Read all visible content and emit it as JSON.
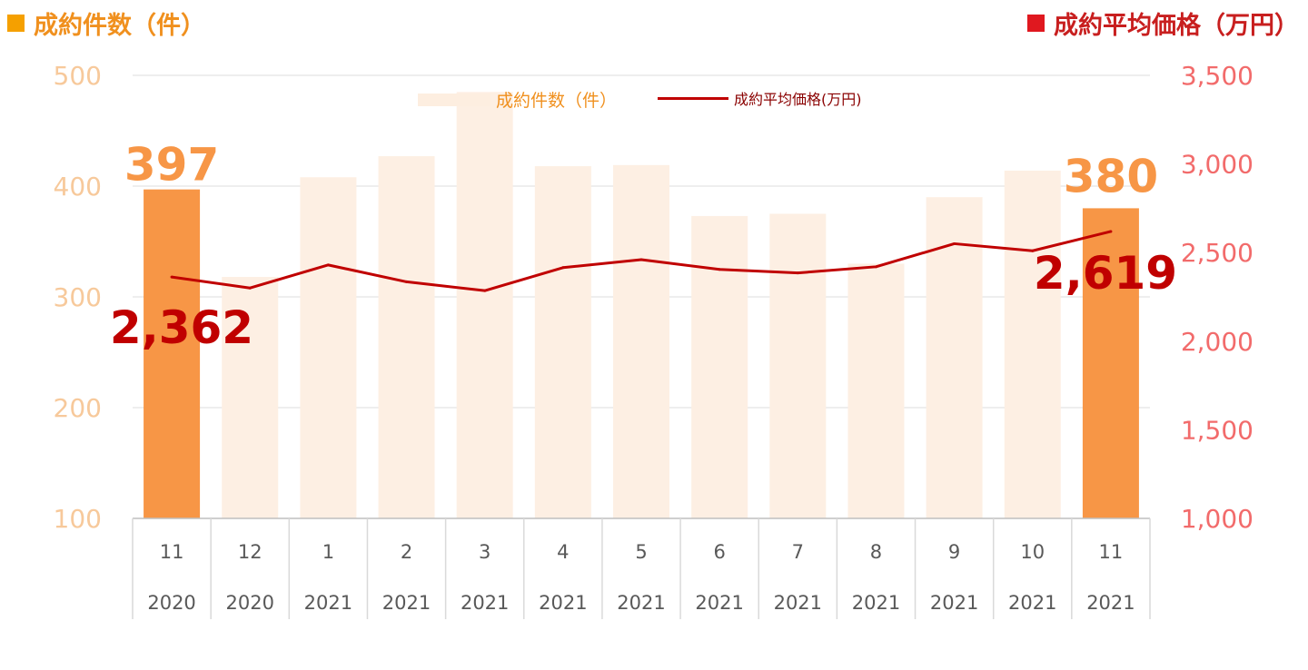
{
  "titles": {
    "left": "成約件数（件）",
    "right": "成約平均価格（万円）"
  },
  "legend": {
    "bar": "成約件数（件）",
    "line": "成約平均価格(万円)"
  },
  "colors": {
    "bar_highlight": "#f79646",
    "bar_faded": "#fdefe3",
    "line": "#c00000",
    "left_axis_text": "#f7c99b",
    "right_axis_text": "#f26b6b",
    "count_label": "#f79646",
    "price_label": "#c00000",
    "grid": "#dcdcdc"
  },
  "chart_data": {
    "type": "bar+line",
    "categories": [
      [
        "11",
        "2020"
      ],
      [
        "12",
        "2020"
      ],
      [
        "1",
        "2021"
      ],
      [
        "2",
        "2021"
      ],
      [
        "3",
        "2021"
      ],
      [
        "4",
        "2021"
      ],
      [
        "5",
        "2021"
      ],
      [
        "6",
        "2021"
      ],
      [
        "7",
        "2021"
      ],
      [
        "8",
        "2021"
      ],
      [
        "9",
        "2021"
      ],
      [
        "10",
        "2021"
      ],
      [
        "11",
        "2021"
      ]
    ],
    "series": [
      {
        "name": "成約件数（件）",
        "type": "bar",
        "axis": "left",
        "values": [
          397,
          318,
          408,
          427,
          485,
          418,
          419,
          373,
          375,
          330,
          390,
          414,
          380
        ],
        "highlight": [
          true,
          false,
          false,
          false,
          false,
          false,
          false,
          false,
          false,
          false,
          false,
          false,
          true
        ]
      },
      {
        "name": "成約平均価格(万円)",
        "type": "line",
        "axis": "right",
        "values": [
          2362,
          2300,
          2430,
          2335,
          2285,
          2415,
          2460,
          2405,
          2385,
          2420,
          2550,
          2510,
          2619
        ]
      }
    ],
    "left_axis": {
      "min": 100,
      "max": 500,
      "ticks": [
        100,
        200,
        300,
        400,
        500
      ]
    },
    "right_axis": {
      "min": 1000,
      "max": 3500,
      "ticks": [
        "1,000",
        "1,500",
        "2,000",
        "2,500",
        "3,000",
        "3,500"
      ]
    },
    "annotations": {
      "first_count": "397",
      "last_count": "380",
      "first_price": "2,362",
      "last_price": "2,619"
    },
    "grid": true,
    "legend_position": "top-center"
  }
}
